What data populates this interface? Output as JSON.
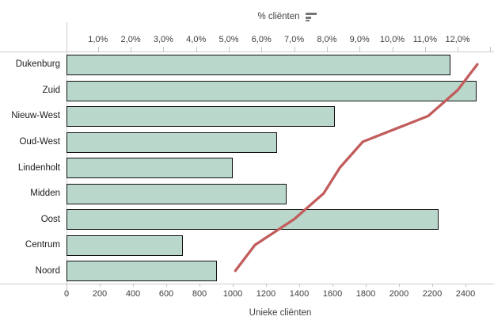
{
  "chart_data": {
    "type": "bar",
    "subtype": "horizontal bars with line overlay (combo chart)",
    "title": "",
    "categories": [
      "Dukenburg",
      "Zuid",
      "Nieuw-West",
      "Oud-West",
      "Lindenholt",
      "Midden",
      "Oost",
      "Centrum",
      "Noord"
    ],
    "series": [
      {
        "name": "Unieke cliënten",
        "type": "bar",
        "axis": "bottom",
        "values": [
          2310,
          2465,
          1615,
          1265,
          1000,
          1325,
          2240,
          700,
          905
        ]
      },
      {
        "name": "% cliënten",
        "type": "line",
        "axis": "top",
        "values": [
          12.6,
          12.0,
          11.1,
          9.1,
          8.4,
          7.9,
          7.0,
          5.8,
          5.2
        ]
      }
    ],
    "top_axis": {
      "label": "% cliënten",
      "tick_labels": [
        "1,0%",
        "2,0%",
        "3,0%",
        "4,0%",
        "5,0%",
        "6,0%",
        "7,0%",
        "8,0%",
        "9,0%",
        "10,0%",
        "11,0%",
        "12,0%"
      ],
      "tick_values": [
        1,
        2,
        3,
        4,
        5,
        6,
        7,
        8,
        9,
        10,
        11,
        12
      ],
      "min": 0,
      "max": 13.1,
      "sort_indicator": "descending"
    },
    "bottom_axis": {
      "label": "Unieke cliënten",
      "tick_labels": [
        "0",
        "200",
        "400",
        "600",
        "800",
        "1000",
        "1200",
        "1400",
        "1600",
        "1800",
        "2000",
        "2200",
        "2400"
      ],
      "tick_values": [
        0,
        200,
        400,
        600,
        800,
        1000,
        1200,
        1400,
        1600,
        1800,
        2000,
        2200,
        2400
      ],
      "min": 0,
      "max": 2570
    },
    "legend_position": "none",
    "grid": "off",
    "colors": {
      "background": "#ffffff",
      "bar_fill": "#b9d7cb",
      "bar_border": "#111111",
      "line": "#c15d5c",
      "axis": "#cdcdcd",
      "tick_mark": "#c5c5c5",
      "tick_text": "#404040",
      "category_text": "#1a1a1a",
      "title_text": "#404040",
      "sort_icon": "#757575"
    }
  }
}
